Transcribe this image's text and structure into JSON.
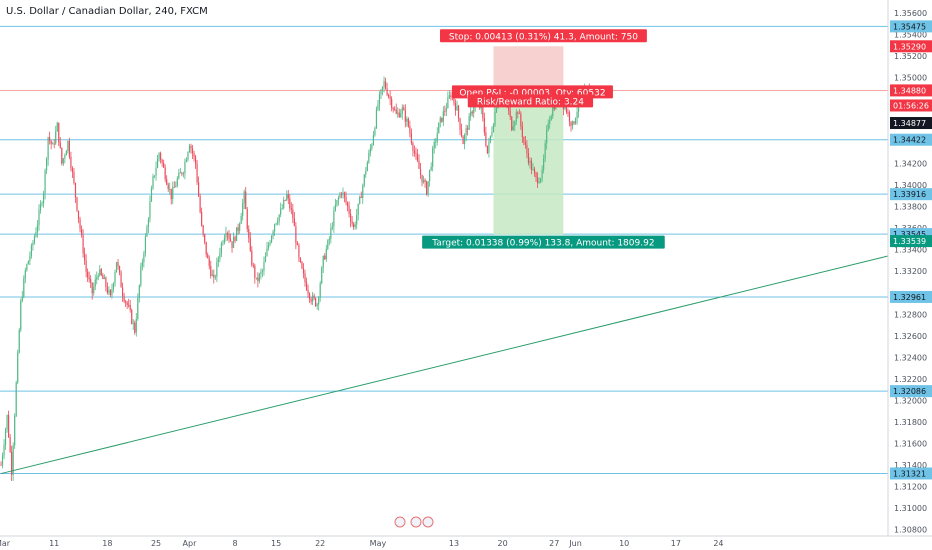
{
  "title": "U.S. Dollar / Canadian Dollar, 240, FXCM",
  "colors": {
    "up": "#53b987",
    "down": "#eb4d5c",
    "hline": "#6fc3e6",
    "trend": "#2a9d6a",
    "last": "#ef5350",
    "stop_zone": "#f6c9c7",
    "target_zone": "#c6e9c2",
    "stop_label": "#f23645",
    "target_label": "#089981",
    "axis_bg": "#ffffff"
  },
  "chart_data": {
    "type": "candlestick",
    "instrument": "U.S. Dollar / Canadian Dollar",
    "interval": "240",
    "source": "FXCM",
    "ylim": [
      1.3074,
      1.3572
    ],
    "y_ticks": [
      "1.35600",
      "1.35400",
      "1.35200",
      "1.35000",
      "1.34600",
      "1.34200",
      "1.34000",
      "1.33800",
      "1.33600",
      "1.33400",
      "1.33200",
      "1.32800",
      "1.32600",
      "1.32400",
      "1.32200",
      "1.32000",
      "1.31800",
      "1.31600",
      "1.31400",
      "1.31200",
      "1.31000",
      "1.30800"
    ],
    "x_ticks": [
      {
        "label": "Mar",
        "i": 1
      },
      {
        "label": "11",
        "i": 35
      },
      {
        "label": "18",
        "i": 70
      },
      {
        "label": "25",
        "i": 102
      },
      {
        "label": "Apr",
        "i": 124
      },
      {
        "label": "8",
        "i": 154
      },
      {
        "label": "15",
        "i": 181
      },
      {
        "label": "22",
        "i": 210
      },
      {
        "label": "May",
        "i": 248
      },
      {
        "label": "13",
        "i": 298
      },
      {
        "label": "20",
        "i": 330
      },
      {
        "label": "27",
        "i": 364
      },
      {
        "label": "Jun",
        "i": 378
      },
      {
        "label": "10",
        "i": 410
      },
      {
        "label": "17",
        "i": 444
      },
      {
        "label": "24",
        "i": 472
      }
    ],
    "horizontal_levels": [
      {
        "value": 1.35475,
        "label": "1.35475"
      },
      {
        "value": 1.34422,
        "label": "1.34422"
      },
      {
        "value": 1.33916,
        "label": "1.33916"
      },
      {
        "value": 1.33545,
        "label": "1.33545"
      },
      {
        "value": 1.32961,
        "label": "1.32961"
      },
      {
        "value": 1.32086,
        "label": "1.32086"
      },
      {
        "value": 1.31321,
        "label": "1.31321"
      }
    ],
    "axis_tags": [
      {
        "value": 1.3529,
        "label": "1.35290",
        "style": "stop"
      },
      {
        "value": 1.3488,
        "label": "1.34880",
        "style": "last"
      },
      {
        "value": 1.3474,
        "label": "01:56:26",
        "style": "last"
      },
      {
        "value": 1.34577,
        "label": "1.34877",
        "style": "current"
      },
      {
        "value": 1.3348,
        "label": "1.33539",
        "style": "target"
      }
    ],
    "last_price": 1.3488,
    "trendline": {
      "from": {
        "i": 0,
        "value": 1.3132
      },
      "to": {
        "i": 485,
        "value": 1.33
      }
    },
    "position": {
      "entry": 1.3488,
      "stop": 1.3529,
      "target": 1.3354,
      "start_i": 324,
      "end_i": 370,
      "stop_label": "Stop: 0.00413 (0.31%) 41.3, Amount: 750",
      "target_label": "Target: 0.01338 (0.99%) 133.8, Amount: 1809.92",
      "pnl_label": "Open P&L: -0.00003, Qty: 60532",
      "rr_label": "Risk/Reward Ratio: 3.24"
    },
    "key_points": [
      [
        0,
        1.314
      ],
      [
        4,
        1.3185
      ],
      [
        7,
        1.3135
      ],
      [
        10,
        1.3215
      ],
      [
        13,
        1.329
      ],
      [
        16,
        1.332
      ],
      [
        20,
        1.334
      ],
      [
        24,
        1.3365
      ],
      [
        28,
        1.3395
      ],
      [
        31,
        1.3445
      ],
      [
        34,
        1.3435
      ],
      [
        37,
        1.3455
      ],
      [
        40,
        1.342
      ],
      [
        44,
        1.344
      ],
      [
        48,
        1.34
      ],
      [
        52,
        1.336
      ],
      [
        56,
        1.332
      ],
      [
        60,
        1.33
      ],
      [
        64,
        1.332
      ],
      [
        68,
        1.331
      ],
      [
        72,
        1.3295
      ],
      [
        76,
        1.333
      ],
      [
        80,
        1.33
      ],
      [
        84,
        1.3285
      ],
      [
        88,
        1.3265
      ],
      [
        92,
        1.332
      ],
      [
        96,
        1.336
      ],
      [
        100,
        1.3405
      ],
      [
        104,
        1.343
      ],
      [
        108,
        1.341
      ],
      [
        112,
        1.339
      ],
      [
        116,
        1.3405
      ],
      [
        120,
        1.3415
      ],
      [
        124,
        1.344
      ],
      [
        128,
        1.342
      ],
      [
        132,
        1.336
      ],
      [
        136,
        1.333
      ],
      [
        140,
        1.331
      ],
      [
        144,
        1.334
      ],
      [
        148,
        1.336
      ],
      [
        152,
        1.3345
      ],
      [
        156,
        1.336
      ],
      [
        160,
        1.339
      ],
      [
        164,
        1.3335
      ],
      [
        168,
        1.331
      ],
      [
        172,
        1.332
      ],
      [
        176,
        1.3345
      ],
      [
        180,
        1.3365
      ],
      [
        184,
        1.3375
      ],
      [
        188,
        1.339
      ],
      [
        192,
        1.337
      ],
      [
        196,
        1.333
      ],
      [
        200,
        1.331
      ],
      [
        204,
        1.3295
      ],
      [
        208,
        1.329
      ],
      [
        212,
        1.333
      ],
      [
        216,
        1.335
      ],
      [
        220,
        1.338
      ],
      [
        224,
        1.3395
      ],
      [
        228,
        1.338
      ],
      [
        232,
        1.336
      ],
      [
        236,
        1.3385
      ],
      [
        240,
        1.3415
      ],
      [
        244,
        1.344
      ],
      [
        248,
        1.3475
      ],
      [
        252,
        1.3495
      ],
      [
        256,
        1.348
      ],
      [
        260,
        1.3465
      ],
      [
        264,
        1.347
      ],
      [
        268,
        1.3455
      ],
      [
        272,
        1.343
      ],
      [
        276,
        1.341
      ],
      [
        280,
        1.3395
      ],
      [
        284,
        1.343
      ],
      [
        288,
        1.3455
      ],
      [
        292,
        1.347
      ],
      [
        296,
        1.3485
      ],
      [
        300,
        1.347
      ],
      [
        304,
        1.344
      ],
      [
        308,
        1.346
      ],
      [
        312,
        1.348
      ],
      [
        316,
        1.347
      ],
      [
        320,
        1.343
      ],
      [
        324,
        1.346
      ],
      [
        328,
        1.349
      ],
      [
        332,
        1.348
      ],
      [
        336,
        1.3455
      ],
      [
        340,
        1.347
      ],
      [
        344,
        1.344
      ],
      [
        348,
        1.342
      ],
      [
        352,
        1.3405
      ],
      [
        356,
        1.341
      ],
      [
        360,
        1.346
      ],
      [
        364,
        1.3475
      ],
      [
        368,
        1.348
      ],
      [
        372,
        1.347
      ],
      [
        376,
        1.3455
      ],
      [
        380,
        1.3475
      ],
      [
        384,
        1.3485
      ],
      [
        388,
        1.3488
      ]
    ]
  }
}
